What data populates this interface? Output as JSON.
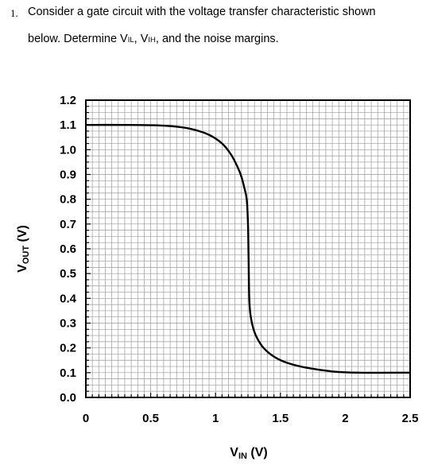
{
  "question": {
    "number": "1.",
    "line1": "Consider a gate circuit with the voltage transfer characteristic shown",
    "line2_prefix": "below.  Determine V",
    "vil_sub": "IL",
    "between": ", V",
    "vih_sub": "IH",
    "line2_suffix": ", and the noise margins."
  },
  "chart_data": {
    "type": "line",
    "title": "",
    "xlabel_main": "V",
    "xlabel_sub": "IN",
    "xlabel_unit": " (V)",
    "ylabel_main": "V",
    "ylabel_sub": "OUT",
    "ylabel_unit": " (V)",
    "xlim": [
      0,
      2.5
    ],
    "ylim": [
      0,
      1.2
    ],
    "grid": true,
    "x_ticks": [
      0,
      0.5,
      1,
      1.5,
      2,
      2.5
    ],
    "x_tick_labels": [
      "0",
      "0.5",
      "1",
      "1.5",
      "2",
      "2.5"
    ],
    "y_ticks": [
      0,
      0.1,
      0.2,
      0.3,
      0.4,
      0.5,
      0.6,
      0.7,
      0.8,
      0.9,
      1.0,
      1.1,
      1.2
    ],
    "y_tick_labels": [
      "0.0",
      "0.1",
      "0.2",
      "0.3",
      "0.4",
      "0.5",
      "0.6",
      "0.7",
      "0.8",
      "0.9",
      "1.0",
      "1.1",
      "1.2"
    ],
    "series": [
      {
        "color": "#000000",
        "x": [
          0,
          0.3,
          0.6,
          0.8,
          0.95,
          1.05,
          1.12,
          1.17,
          1.2,
          1.22,
          1.24,
          1.25,
          1.255,
          1.26,
          1.27,
          1.29,
          1.32,
          1.37,
          1.45,
          1.55,
          1.7,
          1.9,
          2.1,
          2.5
        ],
        "y": [
          1.1,
          1.1,
          1.097,
          1.085,
          1.06,
          1.025,
          0.98,
          0.93,
          0.89,
          0.85,
          0.8,
          0.7,
          0.55,
          0.4,
          0.33,
          0.28,
          0.24,
          0.2,
          0.165,
          0.14,
          0.12,
          0.105,
          0.1,
          0.1
        ]
      }
    ]
  }
}
